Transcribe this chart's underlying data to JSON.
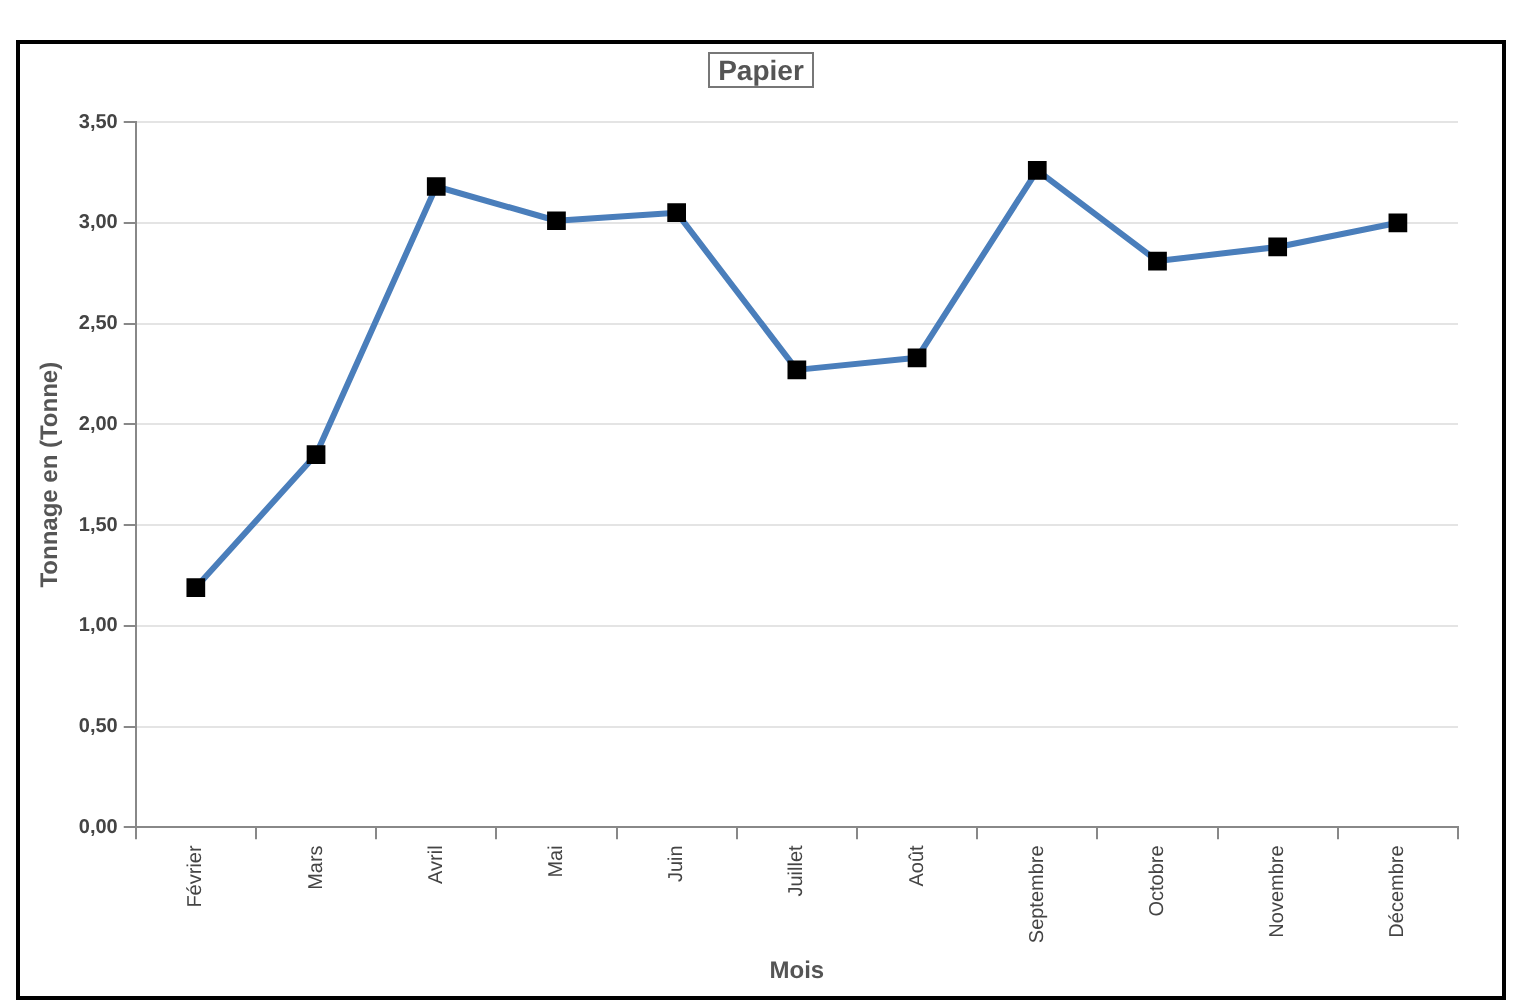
{
  "chart_data": {
    "type": "line",
    "title": "Papier",
    "xlabel": "Mois",
    "ylabel": "Tonnage en (Tonne)",
    "categories": [
      "Février",
      "Mars",
      "Avril",
      "Mai",
      "Juin",
      "Juillet",
      "Août",
      "Septembre",
      "Octobre",
      "Novembre",
      "Décembre"
    ],
    "series": [
      {
        "color": "#4a7ebb",
        "values": [
          1.19,
          1.85,
          3.18,
          3.01,
          3.05,
          2.27,
          2.33,
          3.26,
          2.81,
          2.88,
          3.0
        ]
      }
    ],
    "ylim": [
      0,
      3.5
    ],
    "yticks": [
      {
        "value": 0,
        "label": "0,00"
      },
      {
        "value": 0.5,
        "label": "0,50"
      },
      {
        "value": 1,
        "label": "1,00"
      },
      {
        "value": 1.5,
        "label": "1,50"
      },
      {
        "value": 2,
        "label": "2,00"
      },
      {
        "value": 2.5,
        "label": "2,50"
      },
      {
        "value": 3,
        "label": "3,00"
      },
      {
        "value": 3.5,
        "label": "3,50"
      }
    ],
    "grid": "y",
    "legend": false,
    "marker": "square",
    "line_style": "solid"
  }
}
